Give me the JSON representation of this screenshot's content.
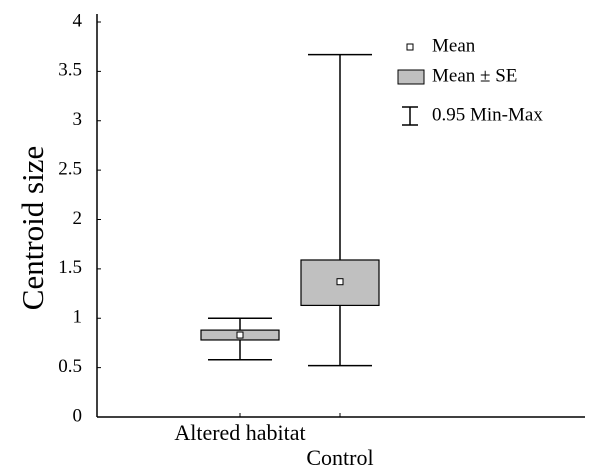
{
  "chart_data": {
    "type": "box",
    "y_label": "Centroid size",
    "categories": [
      "Altered habitat",
      "Control"
    ],
    "mean": [
      0.83,
      1.37
    ],
    "se_low": [
      0.78,
      1.13
    ],
    "se_high": [
      0.88,
      1.59
    ],
    "whisker_low": [
      0.58,
      0.52
    ],
    "whisker_high": [
      1.0,
      3.67
    ],
    "box_color": "#c0c0c0",
    "ylim": [
      0,
      4
    ],
    "yticks": [
      0,
      0.5,
      1,
      1.5,
      2,
      2.5,
      3,
      3.5,
      4
    ],
    "legend": [
      "Mean",
      "Mean ± SE",
      "0.95 Min-Max"
    ]
  }
}
